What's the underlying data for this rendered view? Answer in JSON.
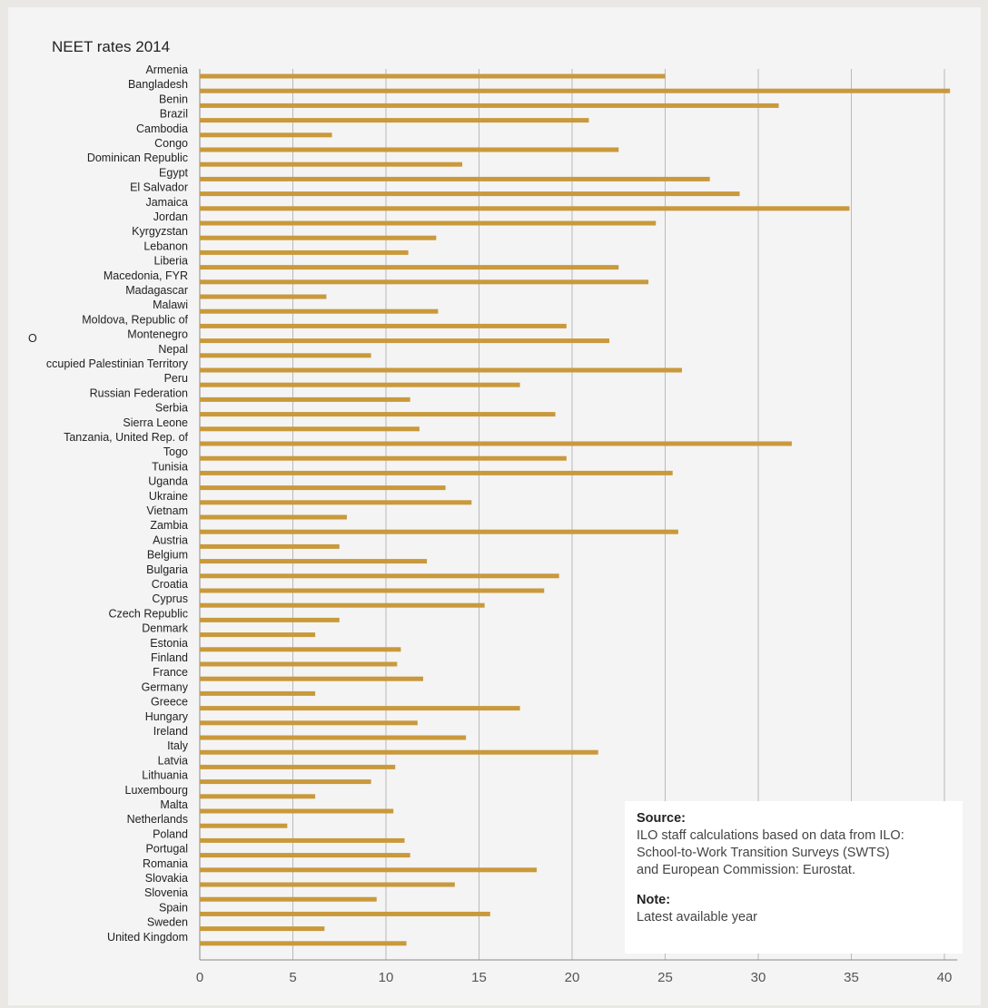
{
  "chart_data": {
    "type": "bar",
    "orientation": "horizontal",
    "title": "NEET rates 2014",
    "xlabel": "",
    "ylabel": "",
    "xlim": [
      0,
      40.6
    ],
    "x_ticks": [
      "0",
      "5",
      "10",
      "15",
      "20",
      "25",
      "30",
      "35",
      "40"
    ],
    "grid": "vertical",
    "bar_color": "#c9993b",
    "categories": [
      "Armenia",
      "Bangladesh",
      "Benin",
      "Brazil",
      "Cambodia",
      "Congo",
      "Dominican Republic",
      "Egypt",
      "El Salvador",
      "Jamaica",
      "Jordan",
      "Kyrgyzstan",
      "Lebanon",
      "Liberia",
      "Macedonia, FYR",
      "Madagascar",
      "Malawi",
      "Moldova, Republic of",
      "Montenegro",
      "Nepal",
      "ccupied Palestinian Territory",
      "Peru",
      "Russian Federation",
      "Serbia",
      "Sierra Leone",
      "Tanzania, United Rep. of",
      "Togo",
      "Tunisia",
      "Uganda",
      "Ukraine",
      "Vietnam",
      "Zambia",
      "Austria",
      "Belgium",
      "Bulgaria",
      "Croatia",
      "Cyprus",
      "Czech Republic",
      "Denmark",
      "Estonia",
      "Finland",
      "France",
      "Germany",
      "Greece",
      "Hungary",
      "Ireland",
      "Italy",
      "Latvia",
      "Lithuania",
      "Luxembourg",
      "Malta",
      "Netherlands",
      "Poland",
      "Portugal",
      "Romania",
      "Slovakia",
      "Slovenia",
      "Spain",
      "Sweden",
      "United Kingdom"
    ],
    "values": [
      25.0,
      40.3,
      31.1,
      20.9,
      7.1,
      22.5,
      14.1,
      27.4,
      29.0,
      34.9,
      24.5,
      12.7,
      11.2,
      22.5,
      24.1,
      6.8,
      12.8,
      19.7,
      22.0,
      9.2,
      25.9,
      17.2,
      11.3,
      19.1,
      11.8,
      31.8,
      19.7,
      25.4,
      13.2,
      14.6,
      7.9,
      25.7,
      7.5,
      12.2,
      19.3,
      18.5,
      15.3,
      7.5,
      6.2,
      10.8,
      10.6,
      12.0,
      6.2,
      17.2,
      11.7,
      14.3,
      21.4,
      10.5,
      9.2,
      6.2,
      10.4,
      4.7,
      11.0,
      11.3,
      18.1,
      13.7,
      9.5,
      15.6,
      6.7,
      11.1
    ]
  },
  "stray_text": "O",
  "source_box": {
    "source_heading": "Source:",
    "source_lines": [
      "ILO staff calculations based on data from ILO:",
      "School-to-Work Transition Surveys (SWTS)",
      "and European Commission: Eurostat."
    ],
    "note_heading": "Note:",
    "note_text": "Latest available year"
  }
}
